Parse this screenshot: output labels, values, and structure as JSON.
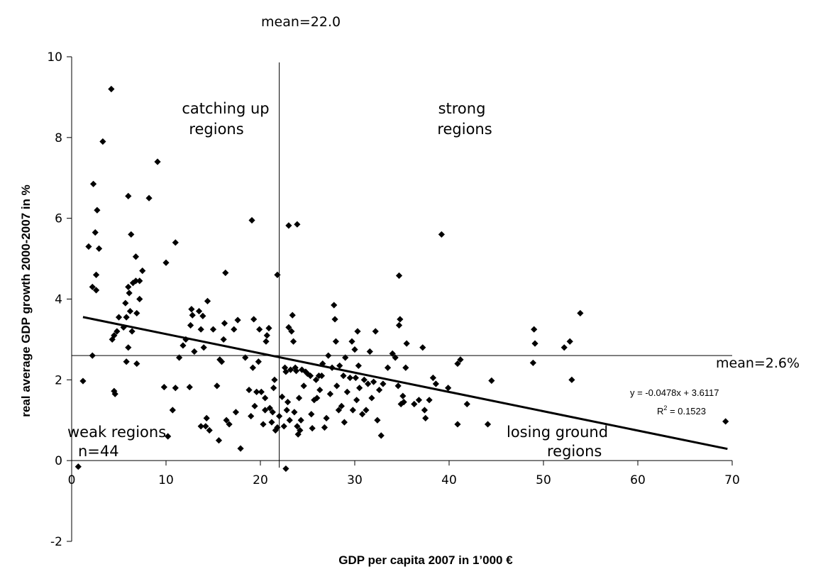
{
  "chart_data": {
    "type": "scatter",
    "xlabel": "GDP per capita 2007 in 1’000 €",
    "ylabel": "real average GDP growth 2000-2007 in %",
    "xlim": [
      0,
      70
    ],
    "ylim": [
      -2,
      10
    ],
    "x_ticks": [
      0,
      10,
      20,
      30,
      40,
      50,
      60,
      70
    ],
    "y_ticks": [
      -2,
      0,
      2,
      4,
      6,
      8,
      10
    ],
    "x_tick_labels": [
      "0",
      "10",
      "20",
      "30",
      "40",
      "50",
      "60",
      "70"
    ],
    "y_tick_labels": [
      "-2",
      "0",
      "2",
      "4",
      "6",
      "8",
      "10"
    ],
    "grid": false,
    "legend": "none",
    "mean_x": 22.0,
    "mean_y": 2.6,
    "mean_x_label": "mean=22.0",
    "mean_y_label": "mean=2.6%",
    "trendline": {
      "slope": -0.0478,
      "intercept": 3.6117,
      "x_range": [
        1.2,
        69.5
      ],
      "equation": "y = -0.0478x + 3.6117",
      "r2_label": "R",
      "r2_sup": "2",
      "r2_value": " = 0.1523"
    },
    "quadrant_labels": {
      "catching_up_1": "catching up",
      "catching_up_2": "regions",
      "strong_1": "strong",
      "strong_2": "regions",
      "weak_1": "weak regions",
      "weak_2": "n=44",
      "losing_1": "losing ground",
      "losing_2": "regions"
    },
    "marker_color": "#000000",
    "points": [
      [
        4.2,
        9.2
      ],
      [
        3.3,
        7.9
      ],
      [
        9.1,
        7.4
      ],
      [
        2.3,
        6.85
      ],
      [
        2.7,
        6.2
      ],
      [
        6.0,
        6.55
      ],
      [
        8.2,
        6.5
      ],
      [
        2.5,
        5.65
      ],
      [
        1.8,
        5.3
      ],
      [
        2.9,
        5.25
      ],
      [
        6.3,
        5.6
      ],
      [
        6.8,
        5.05
      ],
      [
        10.0,
        4.9
      ],
      [
        11.0,
        5.4
      ],
      [
        19.1,
        5.95
      ],
      [
        23.0,
        5.82
      ],
      [
        23.9,
        5.85
      ],
      [
        39.2,
        5.6
      ],
      [
        21.8,
        4.6
      ],
      [
        16.3,
        4.65
      ],
      [
        34.7,
        4.58
      ],
      [
        2.2,
        4.3
      ],
      [
        2.6,
        4.22
      ],
      [
        2.6,
        4.6
      ],
      [
        5.7,
        3.9
      ],
      [
        6.0,
        4.3
      ],
      [
        6.1,
        4.15
      ],
      [
        6.5,
        4.4
      ],
      [
        6.8,
        4.45
      ],
      [
        7.2,
        4.0
      ],
      [
        7.2,
        4.45
      ],
      [
        7.5,
        4.7
      ],
      [
        5.8,
        3.55
      ],
      [
        6.2,
        3.7
      ],
      [
        6.9,
        3.65
      ],
      [
        4.3,
        3.0
      ],
      [
        4.5,
        3.1
      ],
      [
        4.8,
        3.2
      ],
      [
        5.0,
        3.55
      ],
      [
        5.5,
        3.3
      ],
      [
        6.0,
        2.8
      ],
      [
        6.4,
        3.2
      ],
      [
        2.2,
        2.6
      ],
      [
        1.2,
        1.97
      ],
      [
        4.5,
        1.72
      ],
      [
        4.6,
        1.65
      ],
      [
        5.8,
        2.45
      ],
      [
        6.9,
        2.4
      ],
      [
        9.8,
        1.82
      ],
      [
        10.2,
        0.6
      ],
      [
        10.7,
        1.25
      ],
      [
        11.0,
        1.8
      ],
      [
        11.4,
        2.55
      ],
      [
        11.8,
        2.85
      ],
      [
        12.1,
        3.0
      ],
      [
        12.5,
        1.82
      ],
      [
        12.6,
        3.35
      ],
      [
        12.7,
        3.75
      ],
      [
        12.8,
        3.6
      ],
      [
        13.0,
        2.7
      ],
      [
        13.5,
        3.7
      ],
      [
        13.7,
        3.25
      ],
      [
        13.7,
        0.85
      ],
      [
        13.9,
        3.58
      ],
      [
        14.0,
        2.8
      ],
      [
        14.2,
        0.85
      ],
      [
        14.3,
        1.05
      ],
      [
        14.4,
        3.95
      ],
      [
        14.6,
        0.75
      ],
      [
        15.0,
        3.25
      ],
      [
        15.4,
        1.85
      ],
      [
        15.6,
        0.5
      ],
      [
        15.7,
        2.5
      ],
      [
        15.9,
        2.45
      ],
      [
        16.1,
        3.0
      ],
      [
        16.2,
        3.4
      ],
      [
        16.4,
        1.0
      ],
      [
        16.7,
        0.9
      ],
      [
        17.2,
        3.25
      ],
      [
        17.4,
        1.2
      ],
      [
        17.6,
        3.48
      ],
      [
        17.9,
        0.3
      ],
      [
        18.4,
        2.55
      ],
      [
        18.8,
        1.75
      ],
      [
        19.0,
        1.1
      ],
      [
        19.2,
        2.3
      ],
      [
        19.3,
        3.5
      ],
      [
        19.4,
        1.35
      ],
      [
        19.6,
        1.7
      ],
      [
        19.8,
        2.45
      ],
      [
        19.9,
        3.25
      ],
      [
        20.1,
        1.7
      ],
      [
        20.3,
        0.9
      ],
      [
        20.5,
        1.55
      ],
      [
        20.5,
        1.25
      ],
      [
        20.6,
        2.95
      ],
      [
        20.7,
        3.1
      ],
      [
        20.9,
        3.28
      ],
      [
        21.0,
        1.3
      ],
      [
        21.2,
        0.95
      ],
      [
        21.3,
        1.2
      ],
      [
        21.4,
        1.8
      ],
      [
        21.5,
        2.0
      ],
      [
        21.6,
        0.75
      ],
      [
        21.8,
        0.82
      ],
      [
        22.0,
        1.1
      ],
      [
        22.3,
        1.58
      ],
      [
        22.5,
        0.85
      ],
      [
        22.6,
        2.3
      ],
      [
        22.7,
        2.2
      ],
      [
        22.8,
        1.25
      ],
      [
        22.9,
        1.45
      ],
      [
        23.0,
        3.3
      ],
      [
        23.1,
        1.0
      ],
      [
        23.2,
        2.25
      ],
      [
        23.3,
        3.2
      ],
      [
        23.4,
        3.6
      ],
      [
        23.5,
        2.95
      ],
      [
        23.6,
        1.2
      ],
      [
        23.7,
        2.3
      ],
      [
        23.8,
        2.22
      ],
      [
        23.9,
        0.85
      ],
      [
        24.0,
        0.65
      ],
      [
        24.1,
        1.55
      ],
      [
        24.2,
        0.75
      ],
      [
        24.3,
        1.0
      ],
      [
        24.4,
        2.25
      ],
      [
        24.6,
        1.85
      ],
      [
        24.8,
        2.2
      ],
      [
        25.0,
        2.15
      ],
      [
        25.3,
        2.1
      ],
      [
        25.4,
        1.15
      ],
      [
        25.5,
        0.8
      ],
      [
        25.7,
        1.5
      ],
      [
        25.9,
        2.0
      ],
      [
        26.0,
        1.55
      ],
      [
        26.2,
        2.1
      ],
      [
        26.3,
        1.75
      ],
      [
        26.5,
        2.1
      ],
      [
        26.6,
        2.4
      ],
      [
        26.8,
        0.82
      ],
      [
        27.0,
        1.05
      ],
      [
        27.2,
        2.6
      ],
      [
        27.4,
        1.65
      ],
      [
        27.6,
        2.3
      ],
      [
        27.8,
        3.85
      ],
      [
        27.9,
        3.5
      ],
      [
        28.0,
        2.95
      ],
      [
        28.1,
        1.85
      ],
      [
        28.3,
        1.25
      ],
      [
        28.4,
        2.35
      ],
      [
        28.6,
        1.35
      ],
      [
        28.8,
        2.1
      ],
      [
        28.9,
        0.95
      ],
      [
        29.0,
        2.55
      ],
      [
        29.2,
        1.7
      ],
      [
        29.5,
        2.05
      ],
      [
        29.7,
        2.95
      ],
      [
        29.8,
        1.25
      ],
      [
        30.0,
        2.75
      ],
      [
        30.1,
        2.05
      ],
      [
        30.2,
        1.5
      ],
      [
        30.3,
        3.2
      ],
      [
        30.4,
        2.35
      ],
      [
        30.5,
        1.8
      ],
      [
        30.8,
        1.15
      ],
      [
        31.0,
        2.0
      ],
      [
        31.2,
        1.25
      ],
      [
        31.4,
        1.9
      ],
      [
        31.6,
        2.7
      ],
      [
        31.8,
        1.55
      ],
      [
        32.0,
        1.95
      ],
      [
        32.2,
        3.2
      ],
      [
        32.4,
        1.0
      ],
      [
        32.6,
        1.75
      ],
      [
        32.8,
        0.62
      ],
      [
        33.0,
        1.9
      ],
      [
        33.5,
        2.3
      ],
      [
        34.0,
        2.65
      ],
      [
        34.3,
        2.55
      ],
      [
        34.6,
        1.85
      ],
      [
        34.7,
        3.35
      ],
      [
        34.8,
        3.5
      ],
      [
        34.9,
        1.4
      ],
      [
        35.1,
        1.6
      ],
      [
        35.2,
        1.45
      ],
      [
        35.4,
        2.3
      ],
      [
        35.5,
        2.9
      ],
      [
        36.3,
        1.4
      ],
      [
        36.8,
        1.5
      ],
      [
        37.2,
        2.8
      ],
      [
        37.4,
        1.25
      ],
      [
        37.5,
        1.05
      ],
      [
        37.9,
        1.5
      ],
      [
        38.3,
        2.05
      ],
      [
        38.6,
        1.9
      ],
      [
        39.9,
        1.8
      ],
      [
        40.9,
        2.4
      ],
      [
        41.2,
        2.5
      ],
      [
        40.9,
        0.9
      ],
      [
        41.9,
        1.4
      ],
      [
        44.1,
        0.9
      ],
      [
        44.5,
        1.98
      ],
      [
        49.0,
        3.25
      ],
      [
        49.1,
        2.9
      ],
      [
        48.9,
        2.42
      ],
      [
        52.2,
        2.8
      ],
      [
        52.8,
        2.95
      ],
      [
        53.0,
        2.0
      ],
      [
        53.9,
        3.65
      ],
      [
        69.3,
        0.97
      ],
      [
        0.7,
        -0.15
      ],
      [
        22.7,
        -0.2
      ]
    ]
  }
}
